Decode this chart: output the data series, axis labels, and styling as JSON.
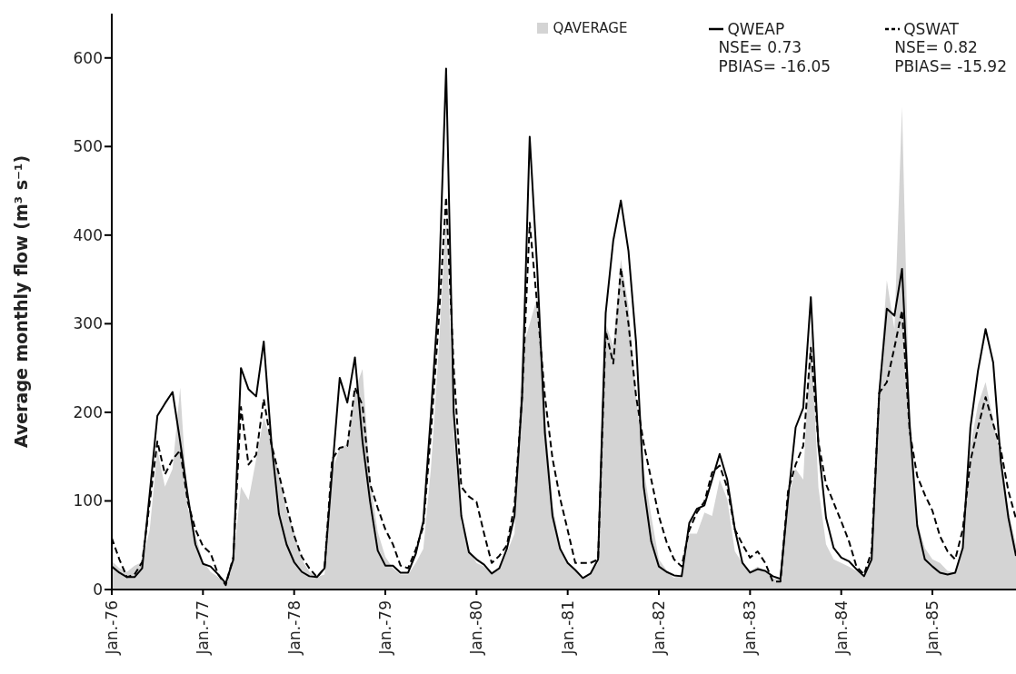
{
  "chart_data": {
    "type": "line",
    "ylabel": "Average monthly flow (m³ s⁻¹)",
    "categories": [
      "Jan.-76",
      null,
      null,
      null,
      null,
      null,
      null,
      null,
      null,
      null,
      null,
      null,
      "Jan.-77",
      null,
      null,
      null,
      null,
      null,
      null,
      null,
      null,
      null,
      null,
      null,
      "Jan.-78",
      null,
      null,
      null,
      null,
      null,
      null,
      null,
      null,
      null,
      null,
      null,
      "Jan.-79",
      null,
      null,
      null,
      null,
      null,
      null,
      null,
      null,
      null,
      null,
      null,
      "Jan.-80",
      null,
      null,
      null,
      null,
      null,
      null,
      null,
      null,
      null,
      null,
      null,
      "Jan.-81",
      null,
      null,
      null,
      null,
      null,
      null,
      null,
      null,
      null,
      null,
      null,
      "Jan.-82",
      null,
      null,
      null,
      null,
      null,
      null,
      null,
      null,
      null,
      null,
      null,
      "Jan.-83",
      null,
      null,
      null,
      null,
      null,
      null,
      null,
      null,
      null,
      null,
      null,
      "Jan.-84",
      null,
      null,
      null,
      null,
      null,
      null,
      null,
      null,
      null,
      null,
      null,
      "Jan.-85",
      null,
      null,
      null,
      null,
      null,
      null,
      null,
      null,
      null,
      null,
      null
    ],
    "series": [
      {
        "name": "QAVERAGE",
        "type": "area",
        "color": "#d4d4d4",
        "values": [
          32,
          24,
          20,
          27,
          31,
          68,
          157,
          116,
          136,
          228,
          92,
          61,
          32,
          20,
          14,
          7,
          31,
          116,
          101,
          147,
          194,
          167,
          130,
          89,
          65,
          34,
          20,
          14,
          17,
          133,
          160,
          164,
          225,
          249,
          123,
          65,
          37,
          24,
          17,
          17,
          30,
          46,
          136,
          267,
          420,
          177,
          75,
          46,
          30,
          26,
          18,
          22,
          42,
          63,
          271,
          300,
          330,
          198,
          95,
          50,
          30,
          22,
          13,
          18,
          30,
          300,
          275,
          373,
          320,
          218,
          136,
          83,
          34,
          22,
          13,
          18,
          63,
          63,
          87,
          83,
          124,
          102,
          43,
          30,
          21,
          26,
          21,
          13,
          11,
          102,
          136,
          124,
          294,
          115,
          51,
          34,
          30,
          26,
          21,
          15,
          38,
          230,
          349,
          294,
          545,
          187,
          77,
          47,
          34,
          30,
          21,
          19,
          43,
          162,
          209,
          234,
          192,
          145,
          89,
          50
        ]
      },
      {
        "name": "QWEAP",
        "line_style": "solid",
        "color": "#000000",
        "values": [
          26,
          19,
          14,
          14,
          24,
          109,
          196,
          210,
          223,
          167,
          106,
          51,
          29,
          26,
          17,
          7,
          34,
          250,
          226,
          218,
          280,
          167,
          85,
          51,
          31,
          20,
          15,
          14,
          24,
          133,
          239,
          211,
          262,
          167,
          99,
          44,
          27,
          27,
          19,
          19,
          40,
          77,
          198,
          330,
          588,
          200,
          83,
          42,
          34,
          28,
          18,
          24,
          46,
          83,
          218,
          511,
          361,
          177,
          83,
          46,
          30,
          22,
          13,
          18,
          34,
          312,
          394,
          439,
          382,
          279,
          116,
          54,
          26,
          20,
          16,
          15,
          75,
          91,
          95,
          124,
          153,
          124,
          68,
          30,
          19,
          23,
          21,
          15,
          12,
          102,
          183,
          205,
          330,
          162,
          81,
          47,
          36,
          32,
          23,
          15,
          34,
          222,
          317,
          309,
          362,
          187,
          72,
          34,
          26,
          19,
          17,
          19,
          47,
          183,
          247,
          294,
          256,
          145,
          81,
          38
        ]
      },
      {
        "name": "QSWAT",
        "line_style": "dashed",
        "color": "#000000",
        "values": [
          58,
          34,
          14,
          17,
          31,
          99,
          167,
          130,
          147,
          157,
          99,
          68,
          49,
          41,
          17,
          5,
          37,
          206,
          141,
          152,
          215,
          164,
          130,
          95,
          61,
          37,
          24,
          14,
          24,
          147,
          160,
          162,
          228,
          208,
          119,
          92,
          68,
          51,
          27,
          24,
          45,
          71,
          177,
          300,
          443,
          250,
          116,
          105,
          99,
          63,
          30,
          38,
          50,
          95,
          218,
          414,
          320,
          218,
          148,
          103,
          67,
          30,
          30,
          30,
          34,
          292,
          255,
          363,
          300,
          218,
          165,
          124,
          83,
          54,
          34,
          26,
          67,
          87,
          99,
          132,
          140,
          115,
          68,
          51,
          36,
          43,
          30,
          9,
          9,
          111,
          141,
          162,
          273,
          166,
          119,
          98,
          77,
          55,
          26,
          17,
          43,
          222,
          234,
          273,
          315,
          179,
          128,
          107,
          89,
          60,
          43,
          34,
          68,
          145,
          183,
          217,
          187,
          158,
          111,
          80
        ]
      }
    ],
    "ylim": [
      0,
      650
    ],
    "yticks": [
      0,
      100,
      200,
      300,
      400,
      500,
      600
    ],
    "grid": false,
    "legend": "top right",
    "marker": "none",
    "annotations": [
      "NSE= 0.73",
      "PBIAS= -16.05",
      "NSE= 0.82",
      "PBIAS= -15.92"
    ]
  }
}
